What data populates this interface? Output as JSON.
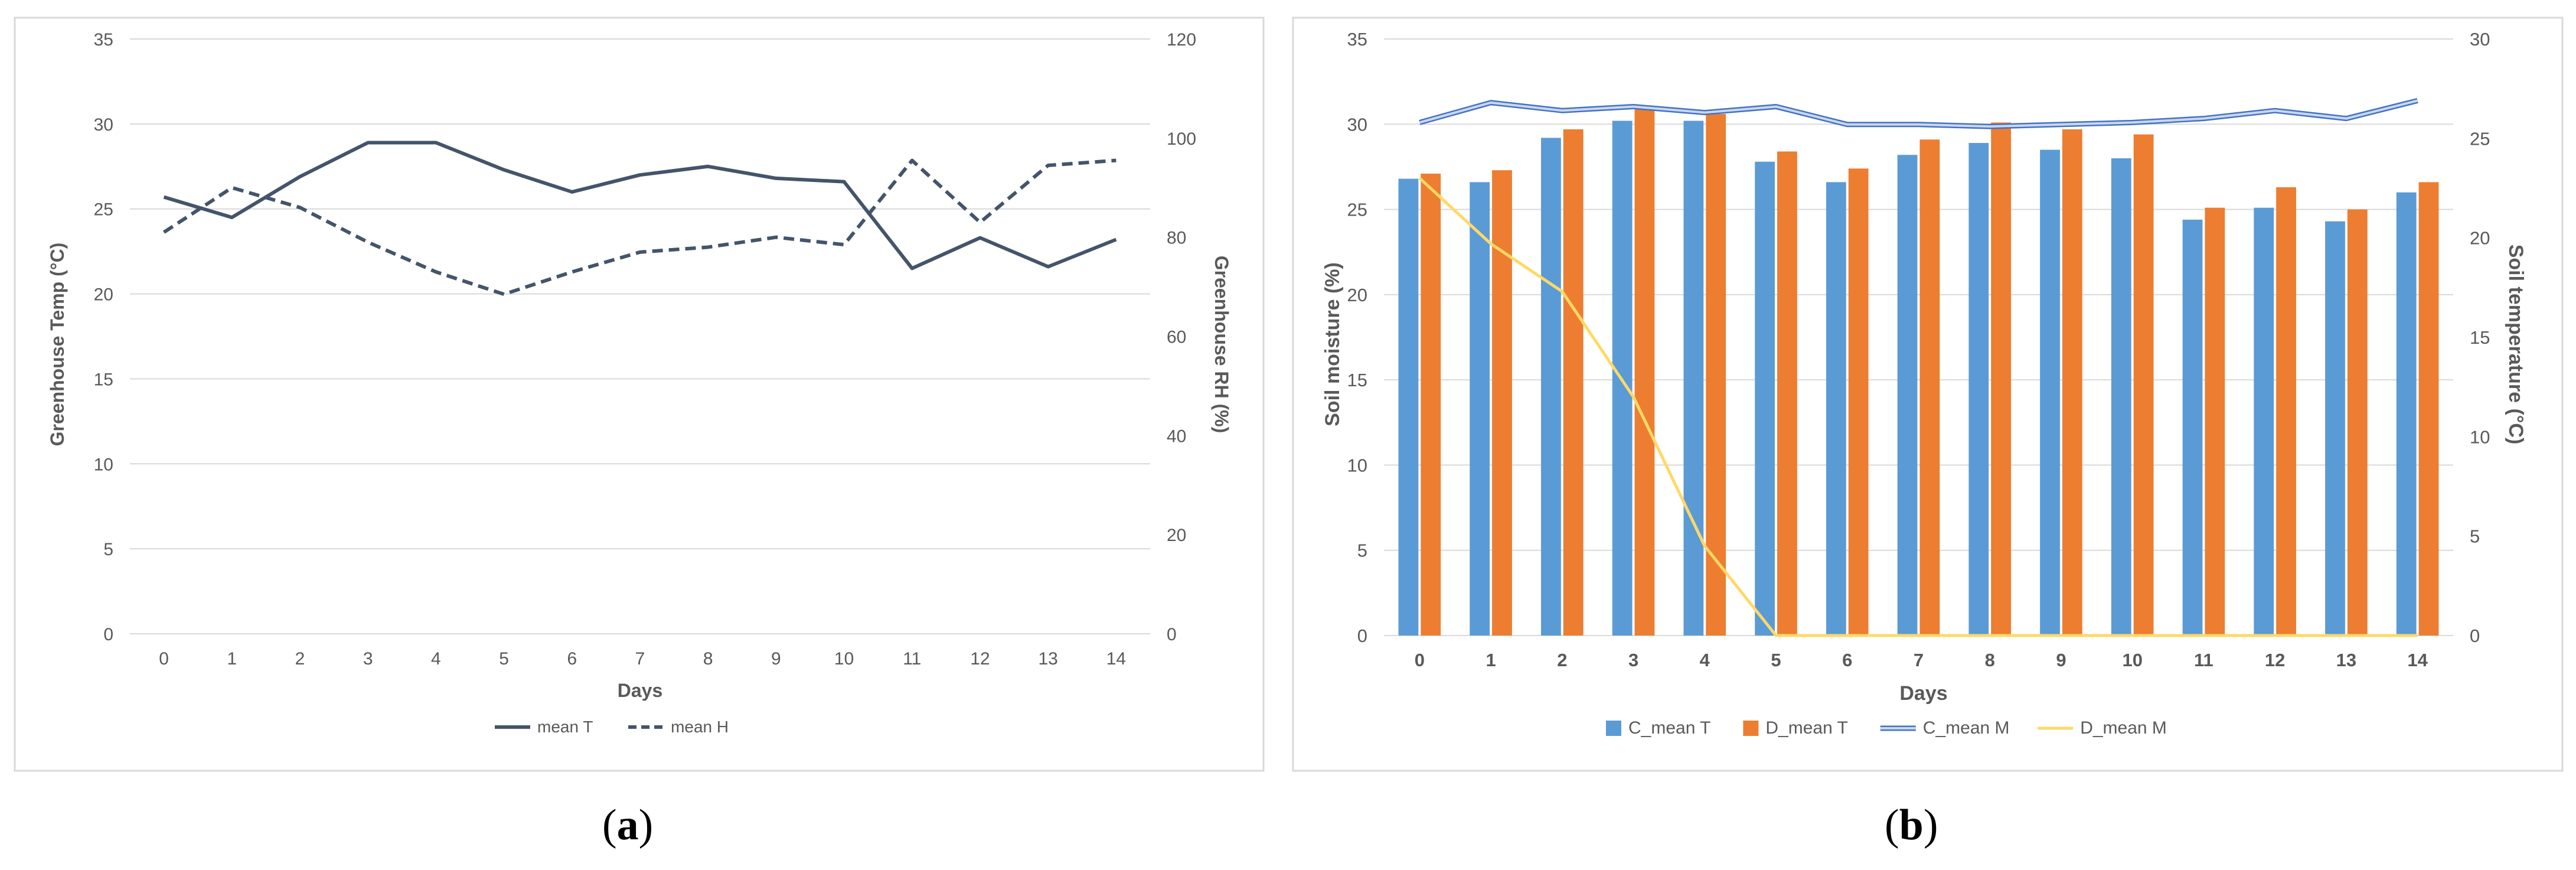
{
  "captions": {
    "a": "a",
    "b": "b"
  },
  "chart_data": [
    {
      "type": "line",
      "panel": "a",
      "categories": [
        "0",
        "1",
        "2",
        "3",
        "4",
        "5",
        "6",
        "7",
        "8",
        "9",
        "10",
        "11",
        "12",
        "13",
        "14"
      ],
      "xlabel": "Days",
      "ylabel": "Greenhouse Temp (°C)",
      "y2label": "Greenhouse RH (%)",
      "ylim": [
        0,
        35
      ],
      "y2lim": [
        0,
        120
      ],
      "yticks": [
        "0",
        "5",
        "10",
        "15",
        "20",
        "25",
        "30",
        "35"
      ],
      "y2ticks": [
        "0",
        "20",
        "40",
        "60",
        "80",
        "100",
        "120"
      ],
      "grid": true,
      "legend_position": "bottom",
      "series": [
        {
          "name": "mean T",
          "axis": "left",
          "style": "solid",
          "color": "#44546A",
          "values": [
            25.7,
            24.5,
            26.9,
            28.9,
            28.9,
            27.3,
            26.0,
            27.0,
            27.5,
            26.8,
            26.6,
            21.5,
            23.3,
            21.6,
            23.2
          ]
        },
        {
          "name": "mean H",
          "axis": "right",
          "style": "dashed",
          "color": "#44546A",
          "values": [
            81,
            90,
            86,
            79,
            73,
            68.5,
            73,
            77,
            78,
            80,
            78.5,
            95.5,
            83,
            94.5,
            95.5
          ]
        }
      ]
    },
    {
      "type": "bar",
      "panel": "b",
      "categories": [
        "0",
        "1",
        "2",
        "3",
        "4",
        "5",
        "6",
        "7",
        "8",
        "9",
        "10",
        "11",
        "12",
        "13",
        "14"
      ],
      "xlabel": "Days",
      "ylabel": "Soil moisture (%)",
      "y2label": "Soil temperature (°C)",
      "ylim": [
        0,
        35
      ],
      "y2lim": [
        0,
        30
      ],
      "yticks": [
        "0",
        "5",
        "10",
        "15",
        "20",
        "25",
        "30",
        "35"
      ],
      "y2ticks": [
        "0",
        "5",
        "10",
        "15",
        "20",
        "25",
        "30"
      ],
      "grid": true,
      "legend_position": "bottom",
      "series": [
        {
          "name": "C_mean T",
          "kind": "bar",
          "axis": "left",
          "color": "#5B9BD5",
          "values": [
            26.8,
            26.6,
            29.2,
            30.2,
            30.2,
            27.8,
            26.6,
            28.2,
            28.9,
            28.5,
            28.0,
            24.4,
            25.1,
            24.3,
            26.0
          ]
        },
        {
          "name": "D_mean T",
          "kind": "bar",
          "axis": "left",
          "color": "#ED7D31",
          "values": [
            27.1,
            27.3,
            29.7,
            30.9,
            30.6,
            28.4,
            27.4,
            29.1,
            30.1,
            29.7,
            29.4,
            25.1,
            26.3,
            25.0,
            26.6
          ]
        },
        {
          "name": "C_mean M",
          "kind": "line",
          "axis": "right",
          "color": "#8EA9DB",
          "values": [
            25.8,
            26.8,
            26.4,
            26.6,
            26.3,
            26.6,
            25.7,
            25.7,
            25.6,
            25.7,
            25.8,
            26.0,
            26.4,
            26.0,
            26.9
          ]
        },
        {
          "name": "D_mean M",
          "kind": "line",
          "axis": "right",
          "color": "#FFD966",
          "values": [
            23.0,
            19.7,
            17.3,
            12.0,
            4.5,
            0.0,
            0.0,
            0.0,
            0.0,
            0.0,
            0.0,
            0.0,
            0.0,
            0.0,
            0.0
          ]
        }
      ]
    }
  ]
}
